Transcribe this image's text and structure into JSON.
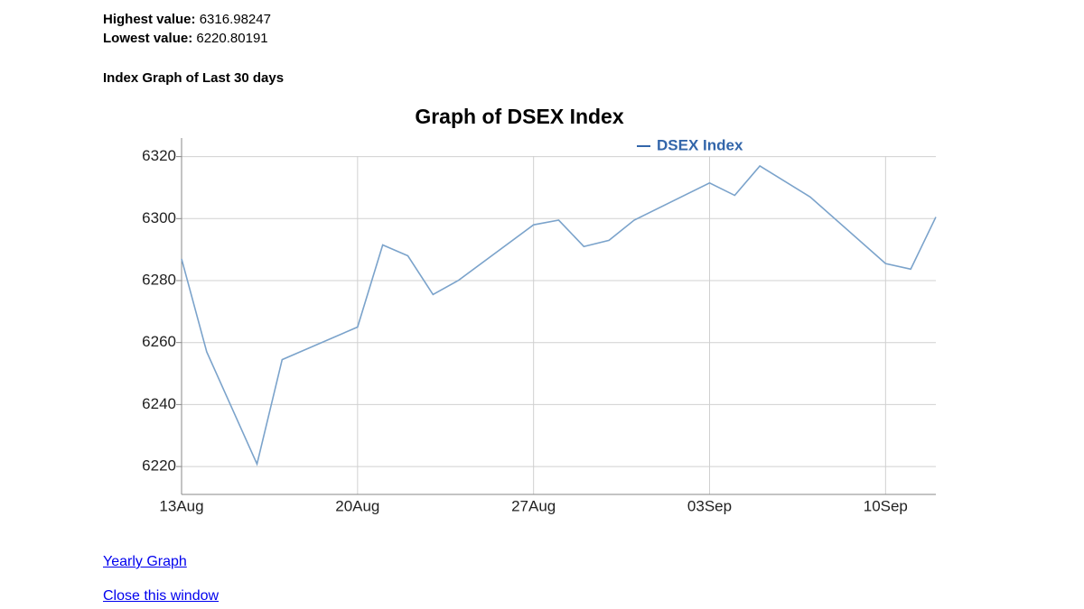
{
  "header": {
    "highest_label": "Highest value:",
    "highest_value": 6316.98247,
    "lowest_label": "Lowest value:",
    "lowest_value": 6220.80191,
    "subtitle": "Index Graph of Last 30 days"
  },
  "chart_data": {
    "type": "line",
    "title": "Graph of DSEX Index",
    "x": [
      "13Aug",
      "14Aug",
      "16Aug",
      "17Aug",
      "20Aug",
      "21Aug",
      "22Aug",
      "23Aug",
      "24Aug",
      "27Aug",
      "28Aug",
      "29Aug",
      "30Aug",
      "31Aug",
      "03Sep",
      "04Sep",
      "05Sep",
      "07Sep",
      "10Sep",
      "11Sep",
      "12Sep"
    ],
    "series": [
      {
        "name": "DSEX Index",
        "color": "#7ba3cb",
        "values": [
          6287,
          6257,
          6220.80191,
          6254.5,
          6265,
          6291.5,
          6288,
          6275.5,
          6280,
          6298,
          6299.5,
          6291,
          6293,
          6299.5,
          6311.5,
          6307.5,
          6316.98247,
          6307,
          6285.5,
          6283.7,
          6300.5
        ]
      }
    ],
    "xlim": [
      "13Aug",
      "12Sep"
    ],
    "xticks": [
      "13Aug",
      "20Aug",
      "27Aug",
      "03Sep",
      "10Sep"
    ],
    "ylim": [
      6211,
      6326
    ],
    "yticks": [
      6220,
      6240,
      6260,
      6280,
      6300,
      6320
    ],
    "grid": true,
    "legend": "top"
  },
  "links": [
    "Yearly Graph",
    "Close this window"
  ]
}
